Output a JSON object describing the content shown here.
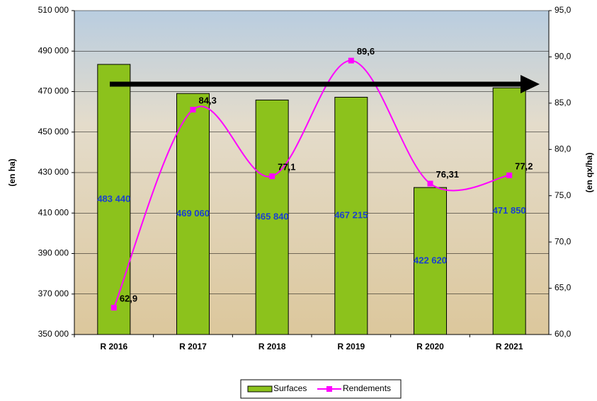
{
  "chart_data": {
    "type": "combo",
    "categories": [
      "R 2016",
      "R 2017",
      "R 2018",
      "R 2019",
      "R 2020",
      "R 2021"
    ],
    "y_label": "(en ha)",
    "y2_label": "(en qx/ha)",
    "ylim": [
      350000,
      510000
    ],
    "yticks": [
      {
        "value": 350000,
        "label": "350 000"
      },
      {
        "value": 370000,
        "label": "370 000"
      },
      {
        "value": 390000,
        "label": "390 000"
      },
      {
        "value": 410000,
        "label": "410 000"
      },
      {
        "value": 430000,
        "label": "430 000"
      },
      {
        "value": 450000,
        "label": "450 000"
      },
      {
        "value": 470000,
        "label": "470 000"
      },
      {
        "value": 490000,
        "label": "490 000"
      },
      {
        "value": 510000,
        "label": "510 000"
      }
    ],
    "y2lim": [
      60,
      95
    ],
    "y2ticks": [
      {
        "value": 60,
        "label": "60,0"
      },
      {
        "value": 65,
        "label": "65,0"
      },
      {
        "value": 70,
        "label": "70,0"
      },
      {
        "value": 75,
        "label": "75,0"
      },
      {
        "value": 80,
        "label": "80,0"
      },
      {
        "value": 85,
        "label": "85,0"
      },
      {
        "value": 90,
        "label": "90,0"
      },
      {
        "value": 95,
        "label": "95,0"
      }
    ],
    "grid": true,
    "legend": "bottom",
    "series": [
      {
        "name": "Surfaces",
        "type": "bar",
        "color": "#8cc21c",
        "values": [
          483440,
          469060,
          465840,
          467215,
          422620,
          471850
        ],
        "value_labels": [
          "483 440",
          "469 060",
          "465 840",
          "467 215",
          "422 620",
          "471 850"
        ]
      },
      {
        "name": "Rendements",
        "type": "line",
        "axis": "y2",
        "color": "#ff00ff",
        "values": [
          62.9,
          84.3,
          77.1,
          89.6,
          76.31,
          77.2
        ],
        "value_labels": [
          "62,9",
          "84,3",
          "77,1",
          "89,6",
          "76,31",
          "77,2"
        ]
      }
    ]
  }
}
